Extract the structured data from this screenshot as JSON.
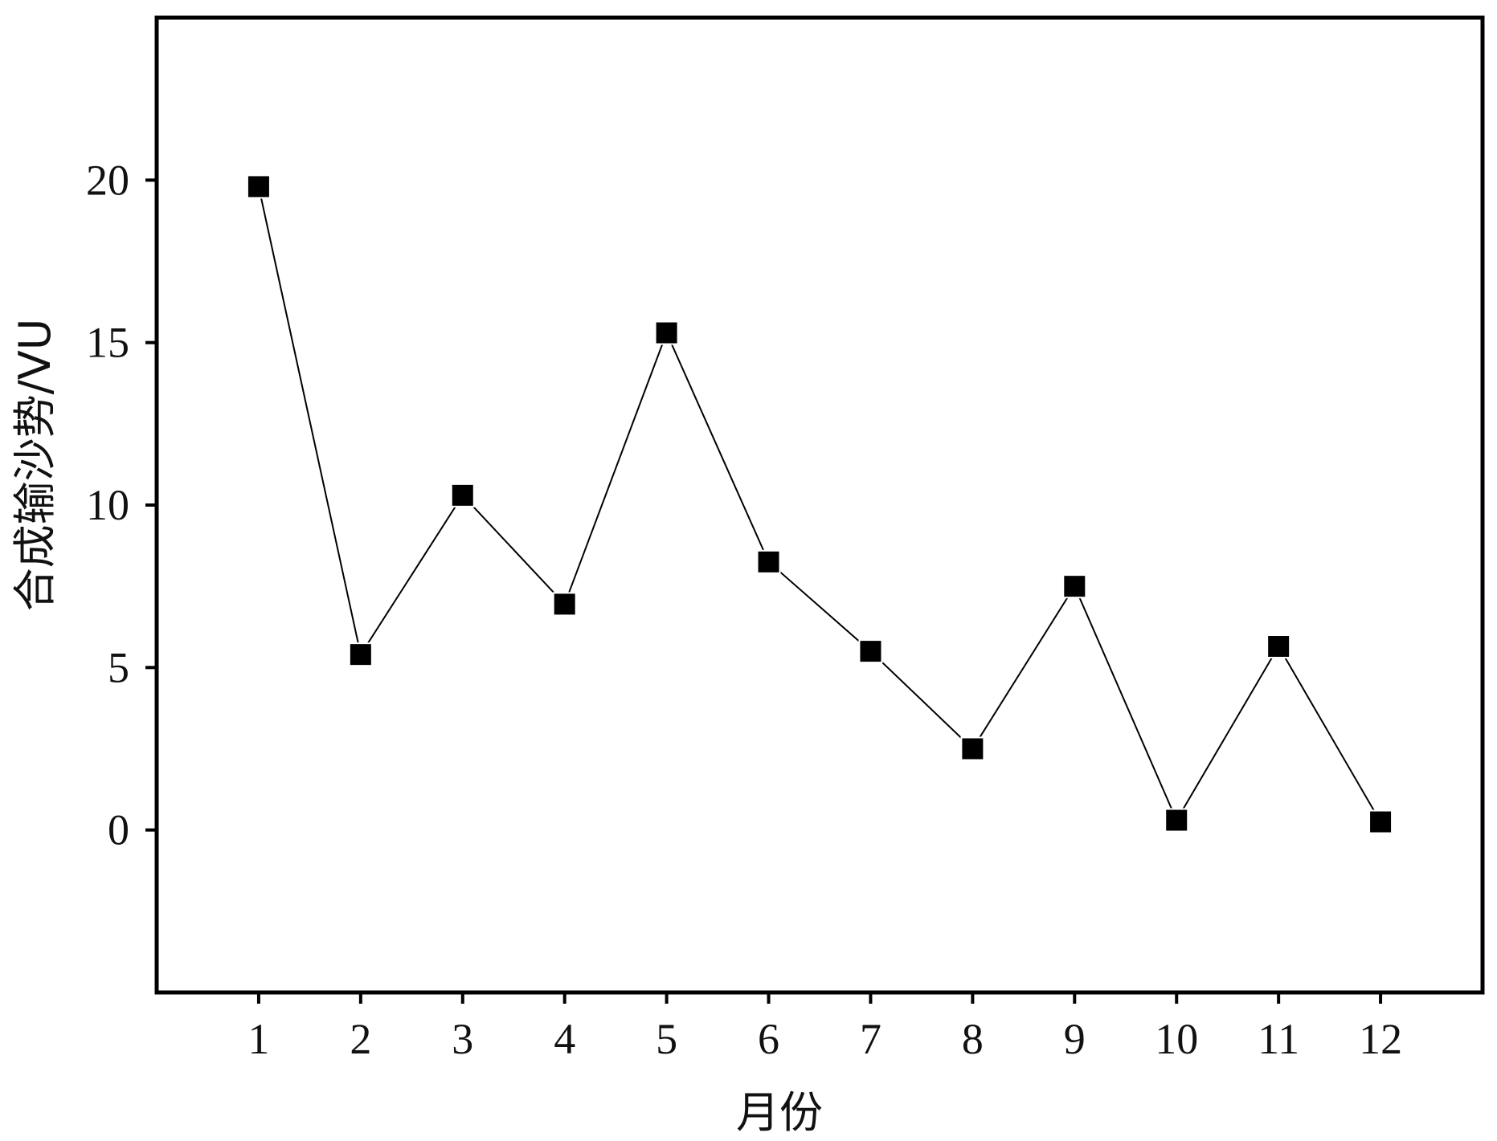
{
  "chart_data": {
    "type": "line",
    "title": "",
    "xlabel": "月份",
    "ylabel": "合成输沙势/VU",
    "categories": [
      "1",
      "2",
      "3",
      "4",
      "5",
      "6",
      "7",
      "8",
      "9",
      "10",
      "11",
      "12"
    ],
    "x": [
      1,
      2,
      3,
      4,
      5,
      6,
      7,
      8,
      9,
      10,
      11,
      12
    ],
    "series": [
      {
        "values": [
          19.8,
          5.4,
          10.3,
          6.95,
          15.3,
          8.25,
          5.5,
          2.5,
          7.5,
          0.3,
          5.65,
          0.25
        ],
        "marker": "square",
        "color": "#000000"
      }
    ],
    "xlim": [
      0,
      13
    ],
    "ylim": [
      -5,
      25
    ],
    "yticks": [
      0,
      5,
      10,
      15,
      20
    ],
    "ytick_labels": [
      "0",
      "5",
      "10",
      "15",
      "20"
    ],
    "grid": false,
    "legend": "none"
  }
}
